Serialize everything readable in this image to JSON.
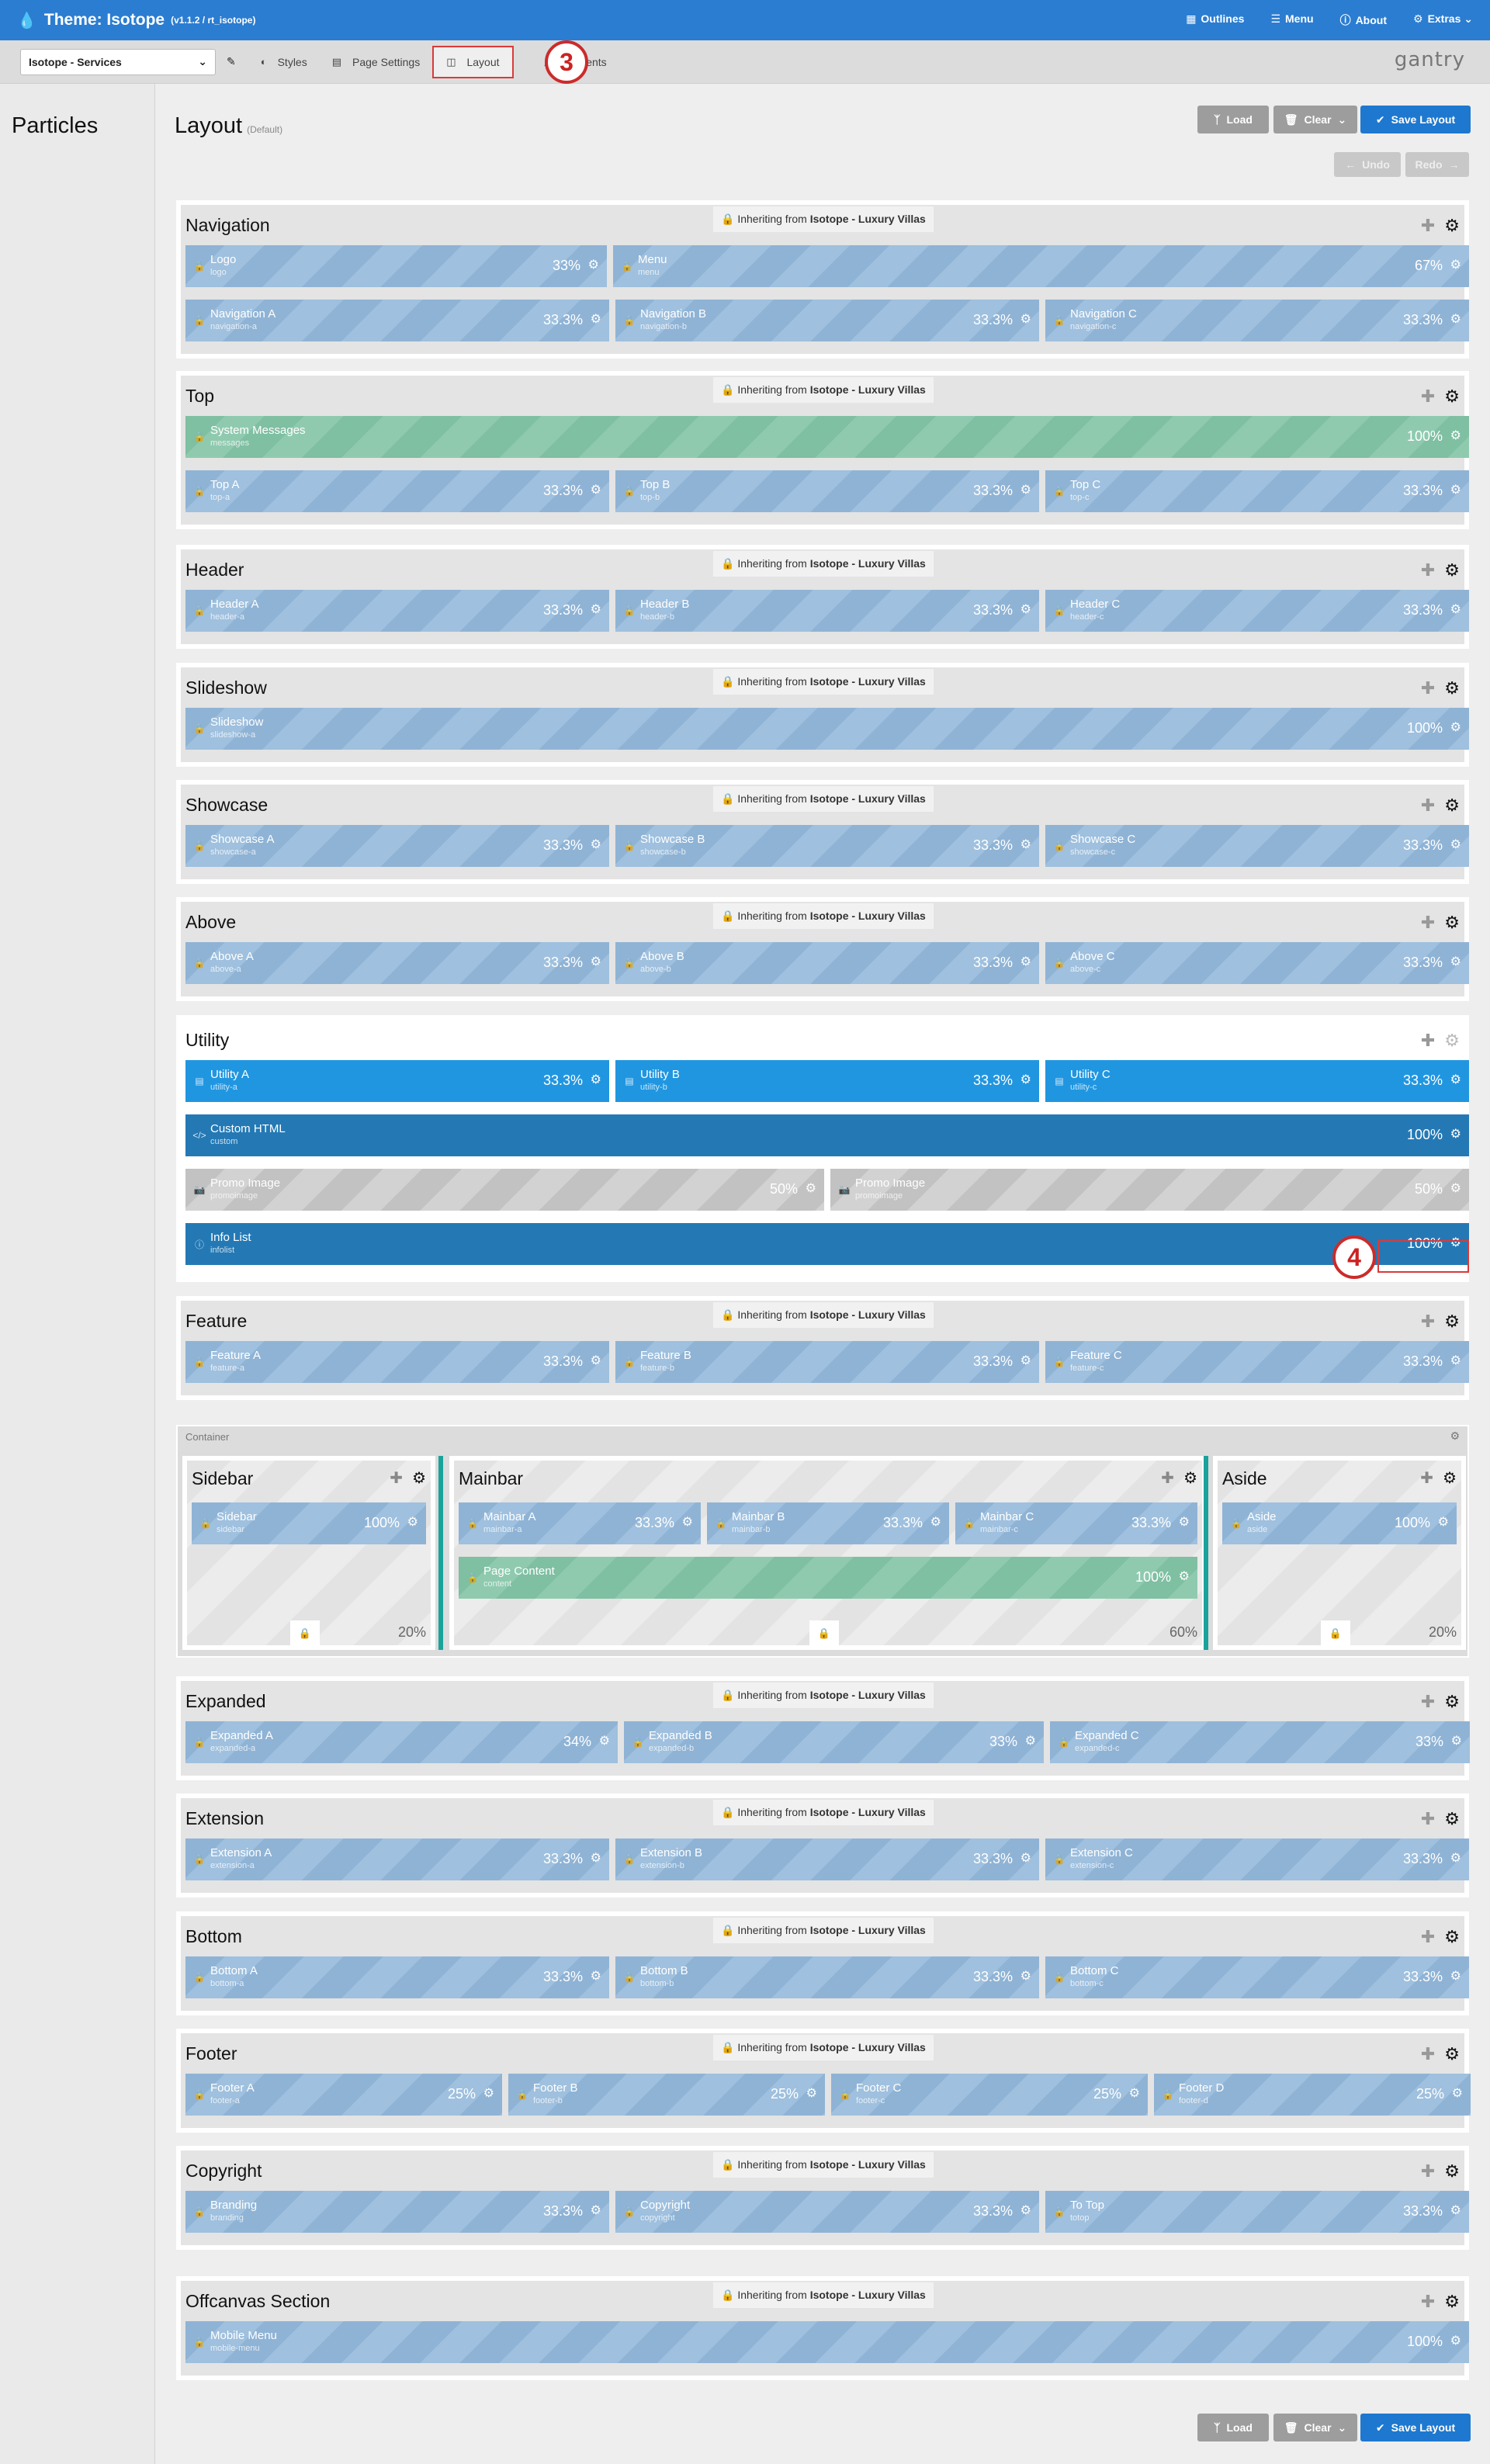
{
  "header": {
    "title": "Theme: Isotope",
    "version": "(v1.1.2 / rt_isotope)",
    "nav": [
      {
        "label": "Outlines",
        "icon": "grid-icon"
      },
      {
        "label": "Menu",
        "icon": "menu-icon"
      },
      {
        "label": "About",
        "icon": "info-icon"
      },
      {
        "label": "Extras",
        "icon": "gear-icon"
      }
    ]
  },
  "toolbar": {
    "outline_select": "Isotope - Services",
    "tabs": [
      "Styles",
      "Page Settings",
      "Layout",
      "Assignments"
    ],
    "active_tab": "Layout",
    "brand": "gantry"
  },
  "annotations": {
    "step3": "3",
    "step4": "4"
  },
  "sidebar": {
    "title": "Particles"
  },
  "layout": {
    "title": "Layout",
    "subtitle": "(Default)",
    "load": "Load",
    "clear": "Clear",
    "save": "Save Layout",
    "undo": "Undo",
    "redo": "Redo",
    "inherit_prefix": "Inheriting from",
    "inherit_source": "Isotope - Luxury Villas",
    "container_label": "Container"
  },
  "sections": [
    {
      "name": "Navigation",
      "rows": [
        [
          {
            "t": "Logo",
            "s": "logo",
            "p": "33%"
          },
          {
            "t": "Menu",
            "s": "menu",
            "p": "67%"
          }
        ],
        [
          {
            "t": "Navigation A",
            "s": "navigation-a",
            "p": "33.3%"
          },
          {
            "t": "Navigation B",
            "s": "navigation-b",
            "p": "33.3%"
          },
          {
            "t": "Navigation C",
            "s": "navigation-c",
            "p": "33.3%"
          }
        ]
      ]
    },
    {
      "name": "Top",
      "rows": [
        [
          {
            "t": "System Messages",
            "s": "messages",
            "p": "100%",
            "k": "green"
          }
        ],
        [
          {
            "t": "Top A",
            "s": "top-a",
            "p": "33.3%"
          },
          {
            "t": "Top B",
            "s": "top-b",
            "p": "33.3%"
          },
          {
            "t": "Top C",
            "s": "top-c",
            "p": "33.3%"
          }
        ]
      ]
    },
    {
      "name": "Header",
      "rows": [
        [
          {
            "t": "Header A",
            "s": "header-a",
            "p": "33.3%"
          },
          {
            "t": "Header B",
            "s": "header-b",
            "p": "33.3%"
          },
          {
            "t": "Header C",
            "s": "header-c",
            "p": "33.3%"
          }
        ]
      ]
    },
    {
      "name": "Slideshow",
      "rows": [
        [
          {
            "t": "Slideshow",
            "s": "slideshow-a",
            "p": "100%"
          }
        ]
      ]
    },
    {
      "name": "Showcase",
      "rows": [
        [
          {
            "t": "Showcase A",
            "s": "showcase-a",
            "p": "33.3%"
          },
          {
            "t": "Showcase B",
            "s": "showcase-b",
            "p": "33.3%"
          },
          {
            "t": "Showcase C",
            "s": "showcase-c",
            "p": "33.3%"
          }
        ]
      ]
    },
    {
      "name": "Above",
      "rows": [
        [
          {
            "t": "Above A",
            "s": "above-a",
            "p": "33.3%"
          },
          {
            "t": "Above B",
            "s": "above-b",
            "p": "33.3%"
          },
          {
            "t": "Above C",
            "s": "above-c",
            "p": "33.3%"
          }
        ]
      ]
    },
    {
      "name": "Utility",
      "rows": [
        [
          {
            "t": "Utility A",
            "s": "utility-a",
            "p": "33.3%",
            "k": "bright"
          },
          {
            "t": "Utility B",
            "s": "utility-b",
            "p": "33.3%",
            "k": "bright"
          },
          {
            "t": "Utility C",
            "s": "utility-c",
            "p": "33.3%",
            "k": "bright"
          }
        ],
        [
          {
            "t": "Custom HTML",
            "s": "custom",
            "p": "100%",
            "k": "dark"
          }
        ],
        [
          {
            "t": "Promo Image",
            "s": "promoimage",
            "p": "50%",
            "k": "stripe"
          },
          {
            "t": "Promo Image",
            "s": "promoimage",
            "p": "50%",
            "k": "stripe"
          }
        ],
        [
          {
            "t": "Info List",
            "s": "infolist",
            "p": "100%",
            "k": "dark"
          }
        ]
      ]
    },
    {
      "name": "Feature",
      "rows": [
        [
          {
            "t": "Feature A",
            "s": "feature-a",
            "p": "33.3%"
          },
          {
            "t": "Feature B",
            "s": "feature-b",
            "p": "33.3%"
          },
          {
            "t": "Feature C",
            "s": "feature-c",
            "p": "33.3%"
          }
        ]
      ]
    },
    {
      "name": "Expanded",
      "rows": [
        [
          {
            "t": "Expanded A",
            "s": "expanded-a",
            "p": "34%"
          },
          {
            "t": "Expanded B",
            "s": "expanded-b",
            "p": "33%"
          },
          {
            "t": "Expanded C",
            "s": "expanded-c",
            "p": "33%"
          }
        ]
      ]
    },
    {
      "name": "Extension",
      "rows": [
        [
          {
            "t": "Extension A",
            "s": "extension-a",
            "p": "33.3%"
          },
          {
            "t": "Extension B",
            "s": "extension-b",
            "p": "33.3%"
          },
          {
            "t": "Extension C",
            "s": "extension-c",
            "p": "33.3%"
          }
        ]
      ]
    },
    {
      "name": "Bottom",
      "rows": [
        [
          {
            "t": "Bottom A",
            "s": "bottom-a",
            "p": "33.3%"
          },
          {
            "t": "Bottom B",
            "s": "bottom-b",
            "p": "33.3%"
          },
          {
            "t": "Bottom C",
            "s": "bottom-c",
            "p": "33.3%"
          }
        ]
      ]
    },
    {
      "name": "Footer",
      "rows": [
        [
          {
            "t": "Footer A",
            "s": "footer-a",
            "p": "25%"
          },
          {
            "t": "Footer B",
            "s": "footer-b",
            "p": "25%"
          },
          {
            "t": "Footer C",
            "s": "footer-c",
            "p": "25%"
          },
          {
            "t": "Footer D",
            "s": "footer-d",
            "p": "25%"
          }
        ]
      ]
    },
    {
      "name": "Copyright",
      "rows": [
        [
          {
            "t": "Branding",
            "s": "branding",
            "p": "33.3%"
          },
          {
            "t": "Copyright",
            "s": "copyright",
            "p": "33.3%"
          },
          {
            "t": "To Top",
            "s": "totop",
            "p": "33.3%"
          }
        ]
      ]
    },
    {
      "name": "Offcanvas Section",
      "rows": [
        [
          {
            "t": "Mobile Menu",
            "s": "mobile-menu",
            "p": "100%"
          }
        ]
      ]
    }
  ],
  "columns": [
    {
      "name": "Sidebar",
      "pct": "20%",
      "blocks": [
        [
          {
            "t": "Sidebar",
            "s": "sidebar",
            "p": "100%"
          }
        ]
      ]
    },
    {
      "name": "Mainbar",
      "pct": "60%",
      "blocks": [
        [
          {
            "t": "Mainbar A",
            "s": "mainbar-a",
            "p": "33.3%"
          },
          {
            "t": "Mainbar B",
            "s": "mainbar-b",
            "p": "33.3%"
          },
          {
            "t": "Mainbar C",
            "s": "mainbar-c",
            "p": "33.3%"
          }
        ],
        [
          {
            "t": "Page Content",
            "s": "content",
            "p": "100%",
            "k": "green"
          }
        ]
      ]
    },
    {
      "name": "Aside",
      "pct": "20%",
      "blocks": [
        [
          {
            "t": "Aside",
            "s": "aside",
            "p": "100%"
          }
        ]
      ]
    }
  ]
}
